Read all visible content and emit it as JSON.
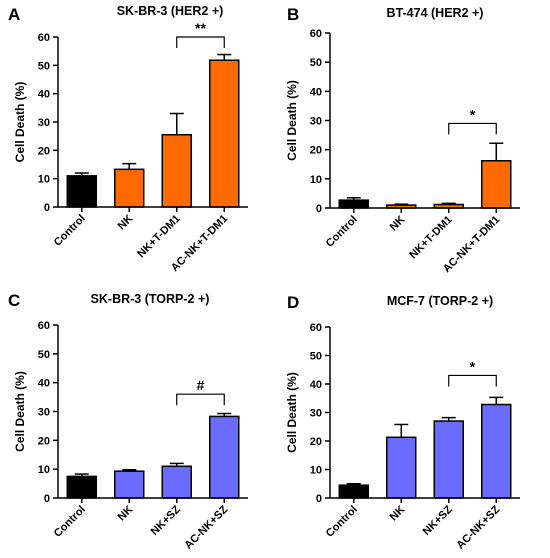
{
  "colors": {
    "control": "#000000",
    "orange": "#FF6A00",
    "blue": "#6B6BFF",
    "axis": "#000000"
  },
  "chart_data": [
    {
      "id": "A",
      "type": "bar",
      "title": "SK-BR-3 (HER2 +)",
      "ylabel": "Cell Death (%)",
      "ylim": [
        0,
        60
      ],
      "yticks": [
        0,
        10,
        20,
        30,
        40,
        50,
        60
      ],
      "categories": [
        "Control",
        "NK",
        "NK+T-DM1",
        "AC-NK+T-DM1"
      ],
      "values": [
        11,
        13.3,
        25.5,
        51.8
      ],
      "errors": [
        1,
        2,
        7.5,
        2
      ],
      "bar_colors": [
        "control",
        "orange",
        "orange",
        "orange"
      ],
      "significance": [
        {
          "from": 2,
          "to": 3,
          "label": "**",
          "y": 60
        }
      ]
    },
    {
      "id": "B",
      "type": "bar",
      "title": "BT-474 (HER2 +)",
      "ylabel": "Cell Death (%)",
      "ylim": [
        0,
        60
      ],
      "yticks": [
        0,
        10,
        20,
        30,
        40,
        50,
        60
      ],
      "categories": [
        "Control",
        "NK",
        "NK+T-DM1",
        "AC-NK+T-DM1"
      ],
      "values": [
        2.7,
        1,
        1.2,
        16.2
      ],
      "errors": [
        0.8,
        0.3,
        0.4,
        6
      ],
      "bar_colors": [
        "control",
        "orange",
        "orange",
        "orange"
      ],
      "significance": [
        {
          "from": 2,
          "to": 3,
          "label": "*",
          "y": 29
        }
      ]
    },
    {
      "id": "C",
      "type": "bar",
      "title": "SK-BR-3 (TORP-2 +)",
      "ylabel": "Cell Death (%)",
      "ylim": [
        0,
        60
      ],
      "yticks": [
        0,
        10,
        20,
        30,
        40,
        50,
        60
      ],
      "categories": [
        "Control",
        "NK",
        "NK+SZ",
        "AC-NK+SZ"
      ],
      "values": [
        7.5,
        9.3,
        11,
        28.3
      ],
      "errors": [
        0.8,
        0.5,
        1,
        1
      ],
      "bar_colors": [
        "control",
        "blue",
        "blue",
        "blue"
      ],
      "significance": [
        {
          "from": 2,
          "to": 3,
          "label": "#",
          "y": 36
        }
      ]
    },
    {
      "id": "D",
      "type": "bar",
      "title": "MCF-7 (TORP-2 +)",
      "ylabel": "Cell Death (%)",
      "ylim": [
        0,
        60
      ],
      "yticks": [
        0,
        10,
        20,
        30,
        40,
        50,
        60
      ],
      "categories": [
        "Control",
        "NK",
        "NK+SZ",
        "AC-NK+SZ"
      ],
      "values": [
        4.5,
        21.3,
        27,
        32.8
      ],
      "errors": [
        0.5,
        4.5,
        1.2,
        2.5
      ],
      "bar_colors": [
        "control",
        "blue",
        "blue",
        "blue"
      ],
      "significance": [
        {
          "from": 2,
          "to": 3,
          "label": "*",
          "y": 43
        }
      ]
    }
  ]
}
